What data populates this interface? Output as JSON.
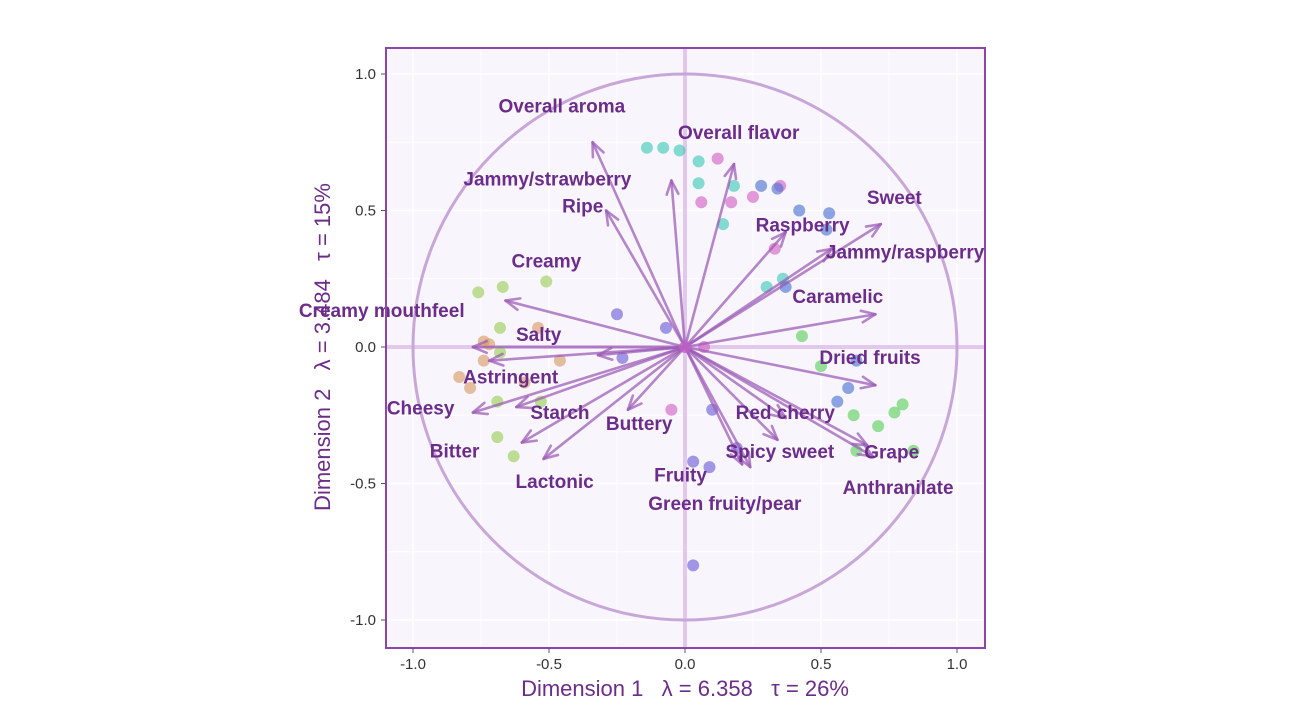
{
  "chart_data": {
    "type": "scatter",
    "subtype": "pca-biplot",
    "title": "",
    "xlabel": "Dimension 1   λ = 6.358   τ = 26%",
    "ylabel": "Dimension 2   λ = 3.484   τ = 15%",
    "xlim": [
      -1.1,
      1.1
    ],
    "ylim": [
      -1.1,
      1.1
    ],
    "x_ticks": [
      "-1.0",
      "-0.5",
      "0.0",
      "0.5",
      "1.0"
    ],
    "y_ticks": [
      "1.0",
      "0.5",
      "0.0",
      "-0.5",
      "-1.0"
    ],
    "correlation_circle_radius": 1.0,
    "grid": true,
    "colors": {
      "arrow": "#9b59b6",
      "label": "#6b2c8a",
      "frame": "#8e44ad",
      "circle": "#c9a6d8",
      "zero_line": "#e3c8ee",
      "background": "#f8f6fc",
      "points": [
        "#3cc8b4",
        "#d25ec4",
        "#4a6fd0",
        "#6a5ad6",
        "#5bcf5b",
        "#9acd55",
        "#d89a64"
      ]
    },
    "variables": [
      {
        "name": "Overall aroma",
        "x": -0.34,
        "y": 0.75
      },
      {
        "name": "Overall flavor",
        "x": 0.18,
        "y": 0.67
      },
      {
        "name": "Jammy/strawberry",
        "x": -0.05,
        "y": 0.61
      },
      {
        "name": "Ripe",
        "x": -0.29,
        "y": 0.5
      },
      {
        "name": "Sweet",
        "x": 0.72,
        "y": 0.45
      },
      {
        "name": "Raspberry",
        "x": 0.37,
        "y": 0.42
      },
      {
        "name": "Jammy/raspberry",
        "x": 0.54,
        "y": 0.36
      },
      {
        "name": "Creamy",
        "x": -0.66,
        "y": 0.17
      },
      {
        "name": "Creamy mouthfeel",
        "x": -0.78,
        "y": 0.0
      },
      {
        "name": "Salty",
        "x": -0.32,
        "y": -0.03
      },
      {
        "name": "Caramelic",
        "x": 0.7,
        "y": 0.12
      },
      {
        "name": "Dried fruits",
        "x": 0.7,
        "y": -0.14
      },
      {
        "name": "Astringent",
        "x": -0.72,
        "y": -0.05
      },
      {
        "name": "Starch",
        "x": -0.62,
        "y": -0.22
      },
      {
        "name": "Cheesy",
        "x": -0.78,
        "y": -0.24
      },
      {
        "name": "Red cherry",
        "x": 0.37,
        "y": -0.26
      },
      {
        "name": "Spicy sweet",
        "x": 0.34,
        "y": -0.34
      },
      {
        "name": "Grape",
        "x": 0.67,
        "y": -0.36
      },
      {
        "name": "Anthranilate",
        "x": 0.69,
        "y": -0.4
      },
      {
        "name": "Bitter",
        "x": -0.6,
        "y": -0.35
      },
      {
        "name": "Lactonic",
        "x": -0.52,
        "y": -0.41
      },
      {
        "name": "Buttery",
        "x": -0.21,
        "y": -0.23
      },
      {
        "name": "Fruity",
        "x": 0.21,
        "y": -0.43
      },
      {
        "name": "Green fruity/pear",
        "x": 0.24,
        "y": -0.44
      }
    ],
    "observations": [
      {
        "x": -0.14,
        "y": 0.73,
        "color": 0
      },
      {
        "x": -0.08,
        "y": 0.73,
        "color": 0
      },
      {
        "x": -0.02,
        "y": 0.72,
        "color": 0
      },
      {
        "x": 0.05,
        "y": 0.68,
        "color": 0
      },
      {
        "x": 0.05,
        "y": 0.6,
        "color": 0
      },
      {
        "x": 0.18,
        "y": 0.59,
        "color": 0
      },
      {
        "x": 0.14,
        "y": 0.45,
        "color": 0
      },
      {
        "x": 0.3,
        "y": 0.22,
        "color": 0
      },
      {
        "x": 0.36,
        "y": 0.25,
        "color": 0
      },
      {
        "x": 0.12,
        "y": 0.69,
        "color": 1
      },
      {
        "x": 0.35,
        "y": 0.59,
        "color": 1
      },
      {
        "x": 0.06,
        "y": 0.53,
        "color": 1
      },
      {
        "x": 0.17,
        "y": 0.53,
        "color": 1
      },
      {
        "x": 0.25,
        "y": 0.55,
        "color": 1
      },
      {
        "x": 0.33,
        "y": 0.36,
        "color": 1
      },
      {
        "x": 0.07,
        "y": 0.0,
        "color": 1
      },
      {
        "x": -0.05,
        "y": -0.23,
        "color": 1
      },
      {
        "x": 0.28,
        "y": 0.59,
        "color": 2
      },
      {
        "x": 0.34,
        "y": 0.58,
        "color": 2
      },
      {
        "x": 0.42,
        "y": 0.5,
        "color": 2
      },
      {
        "x": 0.53,
        "y": 0.49,
        "color": 2
      },
      {
        "x": 0.52,
        "y": 0.43,
        "color": 2
      },
      {
        "x": 0.37,
        "y": 0.22,
        "color": 2
      },
      {
        "x": 0.63,
        "y": -0.05,
        "color": 2
      },
      {
        "x": 0.6,
        "y": -0.15,
        "color": 2
      },
      {
        "x": 0.56,
        "y": -0.2,
        "color": 2
      },
      {
        "x": -0.25,
        "y": 0.12,
        "color": 3
      },
      {
        "x": -0.07,
        "y": 0.07,
        "color": 3
      },
      {
        "x": -0.23,
        "y": -0.04,
        "color": 3
      },
      {
        "x": 0.1,
        "y": -0.23,
        "color": 3
      },
      {
        "x": 0.19,
        "y": -0.37,
        "color": 3
      },
      {
        "x": 0.03,
        "y": -0.42,
        "color": 3
      },
      {
        "x": 0.09,
        "y": -0.44,
        "color": 3
      },
      {
        "x": 0.03,
        "y": -0.8,
        "color": 3
      },
      {
        "x": 0.43,
        "y": 0.04,
        "color": 4
      },
      {
        "x": 0.5,
        "y": -0.07,
        "color": 4
      },
      {
        "x": 0.62,
        "y": -0.25,
        "color": 4
      },
      {
        "x": 0.71,
        "y": -0.29,
        "color": 4
      },
      {
        "x": 0.77,
        "y": -0.24,
        "color": 4
      },
      {
        "x": 0.8,
        "y": -0.21,
        "color": 4
      },
      {
        "x": 0.84,
        "y": -0.38,
        "color": 4
      },
      {
        "x": 0.63,
        "y": -0.38,
        "color": 4
      },
      {
        "x": -0.76,
        "y": 0.2,
        "color": 5
      },
      {
        "x": -0.67,
        "y": 0.22,
        "color": 5
      },
      {
        "x": -0.51,
        "y": 0.24,
        "color": 5
      },
      {
        "x": -0.68,
        "y": 0.07,
        "color": 5
      },
      {
        "x": -0.68,
        "y": -0.02,
        "color": 5
      },
      {
        "x": -0.69,
        "y": -0.2,
        "color": 5
      },
      {
        "x": -0.53,
        "y": -0.2,
        "color": 5
      },
      {
        "x": -0.69,
        "y": -0.33,
        "color": 5
      },
      {
        "x": -0.63,
        "y": -0.4,
        "color": 5
      },
      {
        "x": -0.54,
        "y": 0.07,
        "color": 6
      },
      {
        "x": -0.74,
        "y": 0.02,
        "color": 6
      },
      {
        "x": -0.72,
        "y": 0.01,
        "color": 6
      },
      {
        "x": -0.74,
        "y": -0.05,
        "color": 6
      },
      {
        "x": -0.46,
        "y": -0.05,
        "color": 6
      },
      {
        "x": -0.83,
        "y": -0.11,
        "color": 6
      },
      {
        "x": -0.79,
        "y": -0.15,
        "color": 6
      },
      {
        "x": -0.59,
        "y": -0.13,
        "color": 6
      }
    ]
  }
}
